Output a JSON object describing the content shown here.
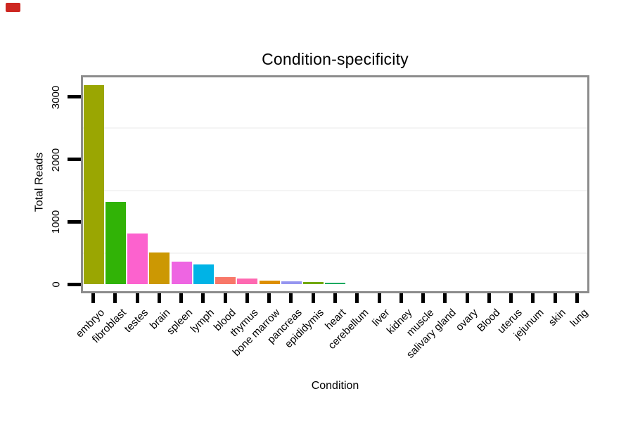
{
  "corner_marker": {
    "color": "#cd2620"
  },
  "chart_data": {
    "type": "bar",
    "title": "Condition-specificity",
    "xlabel": "Condition",
    "ylabel": "Total Reads",
    "categories": [
      "embryo",
      "fibroblast",
      "testes",
      "brain",
      "spleen",
      "lymph",
      "blood",
      "thymus",
      "bone marrow",
      "pancreas",
      "epididymis",
      "heart",
      "cerebellum",
      "liver",
      "kidney",
      "muscle",
      "salivary gland",
      "ovary",
      "Blood",
      "uterus",
      "jejunum",
      "skin",
      "lung"
    ],
    "values": [
      3185,
      1320,
      815,
      510,
      365,
      320,
      118,
      88,
      62,
      42,
      38,
      26,
      0,
      0,
      0,
      0,
      0,
      0,
      0,
      0,
      0,
      0,
      0
    ],
    "bar_colors": [
      "#9aa602",
      "#31b306",
      "#fc62ce",
      "#cc9803",
      "#ee65e2",
      "#00b3e6",
      "#f87768",
      "#fe69b1",
      "#dd8f01",
      "#9595f0",
      "#71a806",
      "#07a95f",
      null,
      null,
      null,
      null,
      null,
      null,
      null,
      null,
      null,
      null,
      null
    ],
    "yticks": [
      0,
      1000,
      2000,
      3000
    ],
    "minor_gridlines": [
      500,
      1500,
      2500
    ],
    "ylim": [
      0,
      3330
    ],
    "grid": "faint horizontal minor gridlines only",
    "legend": "none"
  }
}
